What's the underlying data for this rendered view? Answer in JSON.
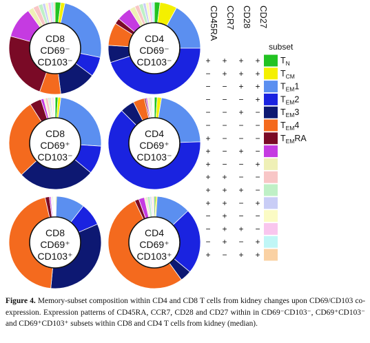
{
  "chart_data": {
    "type": "donut",
    "subset_legend_title": "subset",
    "markers": [
      "CD45RA",
      "CCR7",
      "CD28",
      "CD27"
    ],
    "colors": [
      "#22c322",
      "#f4f000",
      "#5b8ff0",
      "#1a23e0",
      "#0d1872",
      "#f46a1e",
      "#7a0a26",
      "#c53be1",
      "#eff0b6",
      "#f8c6c6",
      "#bff0c6",
      "#c9cdf6",
      "#fbfbc4",
      "#f9c6ee",
      "#c0f6f6",
      "#fad1a3"
    ],
    "legend_subsets": [
      {
        "base": "T",
        "sub": "N",
        "suffix": ""
      },
      {
        "base": "T",
        "sub": "CM",
        "suffix": ""
      },
      {
        "base": "T",
        "sub": "EM",
        "suffix": "1"
      },
      {
        "base": "T",
        "sub": "EM",
        "suffix": "2"
      },
      {
        "base": "T",
        "sub": "EM",
        "suffix": "3"
      },
      {
        "base": "T",
        "sub": "EM",
        "suffix": "4"
      },
      {
        "base": "T",
        "sub": "EM",
        "suffix": "RA"
      }
    ],
    "expression_table": [
      [
        "+",
        "+",
        "+",
        "+"
      ],
      [
        "−",
        "+",
        "+",
        "+"
      ],
      [
        "−",
        "−",
        "+",
        "+"
      ],
      [
        "−",
        "−",
        "−",
        "+"
      ],
      [
        "−",
        "−",
        "+",
        "−"
      ],
      [
        "−",
        "−",
        "−",
        "−"
      ],
      [
        "+",
        "−",
        "−",
        "−"
      ],
      [
        "+",
        "−",
        "+",
        "−"
      ],
      [
        "+",
        "−",
        "−",
        "+"
      ],
      [
        "+",
        "+",
        "−",
        "−"
      ],
      [
        "+",
        "+",
        "+",
        "−"
      ],
      [
        "+",
        "+",
        "−",
        "+"
      ],
      [
        "−",
        "+",
        "−",
        "−"
      ],
      [
        "−",
        "+",
        "+",
        "−"
      ],
      [
        "−",
        "+",
        "−",
        "+"
      ],
      [
        "+",
        "−",
        "+",
        "+"
      ]
    ],
    "donuts": [
      {
        "label": [
          "CD8",
          "CD69⁻",
          "CD103⁻"
        ],
        "values": [
          2,
          1.5,
          25,
          7,
          13,
          7.5,
          24,
          11,
          2,
          2,
          1.5,
          1,
          1,
          1,
          1,
          0.5
        ]
      },
      {
        "label": [
          "CD4",
          "CD69⁻",
          "CD103⁻"
        ],
        "values": [
          2,
          6,
          17,
          45,
          6,
          8,
          2,
          5,
          2,
          1.5,
          1.5,
          1,
          1,
          1,
          1,
          0
        ]
      },
      {
        "label": [
          "CD8",
          "CD69⁺",
          "CD103⁻"
        ],
        "values": [
          1,
          1,
          24,
          10,
          27,
          28,
          4,
          1,
          0.5,
          1,
          0.5,
          0.5,
          0.5,
          0.5,
          0.3,
          0.2
        ]
      },
      {
        "label": [
          "CD4",
          "CD69⁺",
          "CD103⁻"
        ],
        "values": [
          1,
          1.5,
          22,
          63,
          5,
          4,
          0.5,
          0.5,
          0.5,
          0.5,
          0.5,
          0.3,
          0.3,
          0.2,
          0.2,
          0
        ]
      },
      {
        "label": [
          "CD8",
          "CD69⁺",
          "CD103⁺"
        ],
        "values": [
          0.2,
          0.3,
          10,
          8,
          33,
          45,
          1.5,
          0.5,
          0.3,
          0.3,
          0.3,
          0.2,
          0.1,
          0.1,
          0.1,
          0.1
        ]
      },
      {
        "label": [
          "CD4",
          "CD69⁺",
          "CD103⁺"
        ],
        "values": [
          0.5,
          0.5,
          12,
          23,
          4,
          53,
          1.5,
          2,
          0.5,
          0.5,
          1,
          0.5,
          0.5,
          0.5,
          0,
          0
        ]
      }
    ]
  },
  "caption": {
    "label": "Figure 4.",
    "text": "Memory-subset composition within CD4 and CD8 T cells from kidney changes upon CD69/CD103 co-expression. Expression patterns of CD45RA, CCR7, CD28 and CD27 within in CD69⁻CD103⁻, CD69⁺CD103⁻ and CD69⁺CD103⁺ subsets within CD8 and CD4 T cells from kidney (median)."
  }
}
